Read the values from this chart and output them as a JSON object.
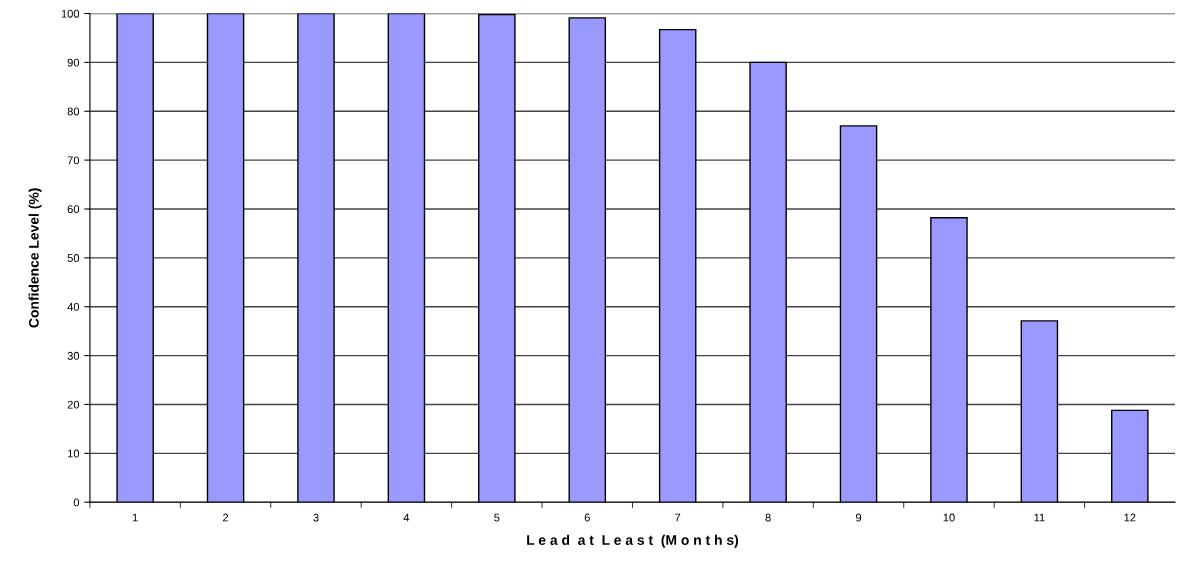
{
  "chart_data": {
    "type": "bar",
    "xlabel": "L e a d  a t  L e a s t  (M o n t h s)",
    "ylabel": "Confidence Level (%)",
    "categories": [
      "1",
      "2",
      "3",
      "4",
      "5",
      "6",
      "7",
      "8",
      "9",
      "10",
      "11",
      "12"
    ],
    "values": [
      100,
      100,
      100,
      100,
      99.8,
      99.1,
      96.7,
      90,
      77,
      58.2,
      37.1,
      18.8
    ],
    "color": "#9999ff",
    "ylim": [
      0,
      100
    ],
    "yticks": [
      0,
      10,
      20,
      30,
      40,
      50,
      60,
      70,
      80,
      90,
      100
    ],
    "grid": "y",
    "legend": false
  }
}
